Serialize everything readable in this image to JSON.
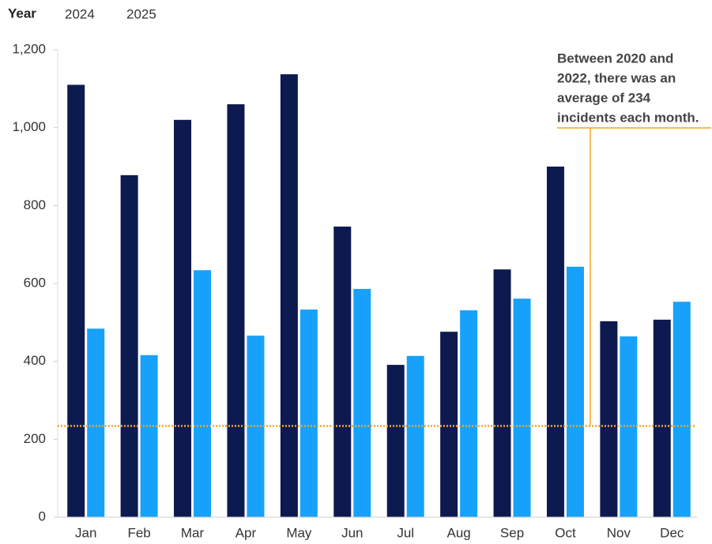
{
  "chart_data": {
    "type": "bar",
    "legend_title": "Year",
    "categories": [
      "Jan",
      "Feb",
      "Mar",
      "Apr",
      "May",
      "Jun",
      "Jul",
      "Aug",
      "Sep",
      "Oct",
      "Nov",
      "Dec"
    ],
    "series": [
      {
        "name": "2024",
        "color": "#0d1a4f",
        "values": [
          1110,
          878,
          1020,
          1060,
          1137,
          746,
          391,
          476,
          636,
          900,
          503,
          507
        ]
      },
      {
        "name": "2025",
        "color": "#18a1fb",
        "values": [
          484,
          416,
          634,
          466,
          533,
          586,
          414,
          531,
          561,
          643,
          464,
          553
        ]
      }
    ],
    "ylim": [
      0,
      1200
    ],
    "yticks": [
      0,
      200,
      400,
      600,
      800,
      {
        "value": 1000,
        "label": "1,000"
      },
      {
        "value": 1200,
        "label": "1,200"
      }
    ],
    "reference_line": {
      "value": 234,
      "color": "#f5a623"
    },
    "annotation": {
      "lines": [
        "Between 2020 and",
        "2022, there was an",
        "average of 234",
        "incidents each month."
      ]
    }
  }
}
